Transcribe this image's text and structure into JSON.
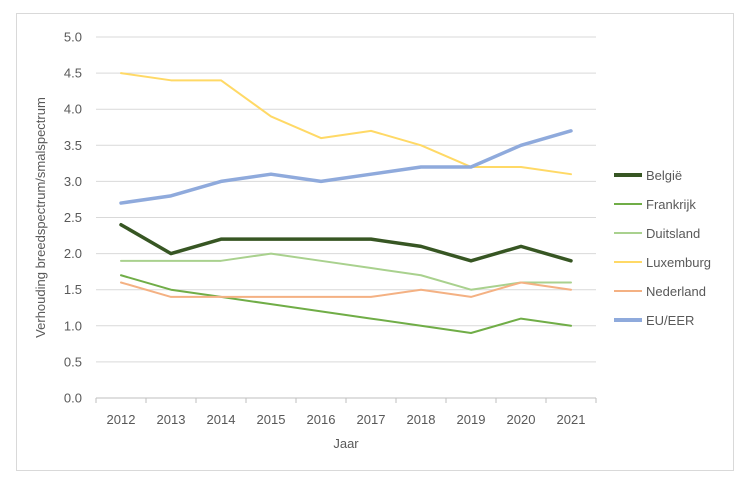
{
  "chart_data": {
    "type": "line",
    "title": "",
    "xlabel": "Jaar",
    "ylabel": "Verhouding breedspectrum/smalspectrum",
    "ylim": [
      0,
      5
    ],
    "y_ticks": [
      "0.0",
      "0.5",
      "1.0",
      "1.5",
      "2.0",
      "2.5",
      "3.0",
      "3.5",
      "4.0",
      "4.5",
      "5.0"
    ],
    "categories": [
      "2012",
      "2013",
      "2014",
      "2015",
      "2016",
      "2017",
      "2018",
      "2019",
      "2020",
      "2021"
    ],
    "grid": "horizontal",
    "legend_position": "right",
    "series": [
      {
        "name": "België",
        "color": "#375623",
        "values": [
          2.4,
          2.0,
          2.2,
          2.2,
          2.2,
          2.2,
          2.1,
          1.9,
          2.1,
          1.9
        ],
        "bold": true
      },
      {
        "name": "Frankrijk",
        "color": "#70AD47",
        "values": [
          1.7,
          1.5,
          1.4,
          1.3,
          1.2,
          1.1,
          1.0,
          0.9,
          1.1,
          1.0
        ],
        "bold": false
      },
      {
        "name": "Duitsland",
        "color": "#A9D18E",
        "values": [
          1.9,
          1.9,
          1.9,
          2.0,
          1.9,
          1.8,
          1.7,
          1.5,
          1.6,
          1.6
        ],
        "bold": false
      },
      {
        "name": "Luxemburg",
        "color": "#FFD966",
        "values": [
          4.5,
          4.4,
          4.4,
          3.9,
          3.6,
          3.7,
          3.5,
          3.2,
          3.2,
          3.1
        ],
        "bold": false
      },
      {
        "name": "Nederland",
        "color": "#F4B183",
        "values": [
          1.6,
          1.4,
          1.4,
          1.4,
          1.4,
          1.4,
          1.5,
          1.4,
          1.6,
          1.5
        ],
        "bold": false
      },
      {
        "name": "EU/EER",
        "color": "#8FAADC",
        "values": [
          2.7,
          2.8,
          3.0,
          3.1,
          3.0,
          3.1,
          3.2,
          3.2,
          3.5,
          3.7
        ],
        "bold": true
      }
    ]
  }
}
